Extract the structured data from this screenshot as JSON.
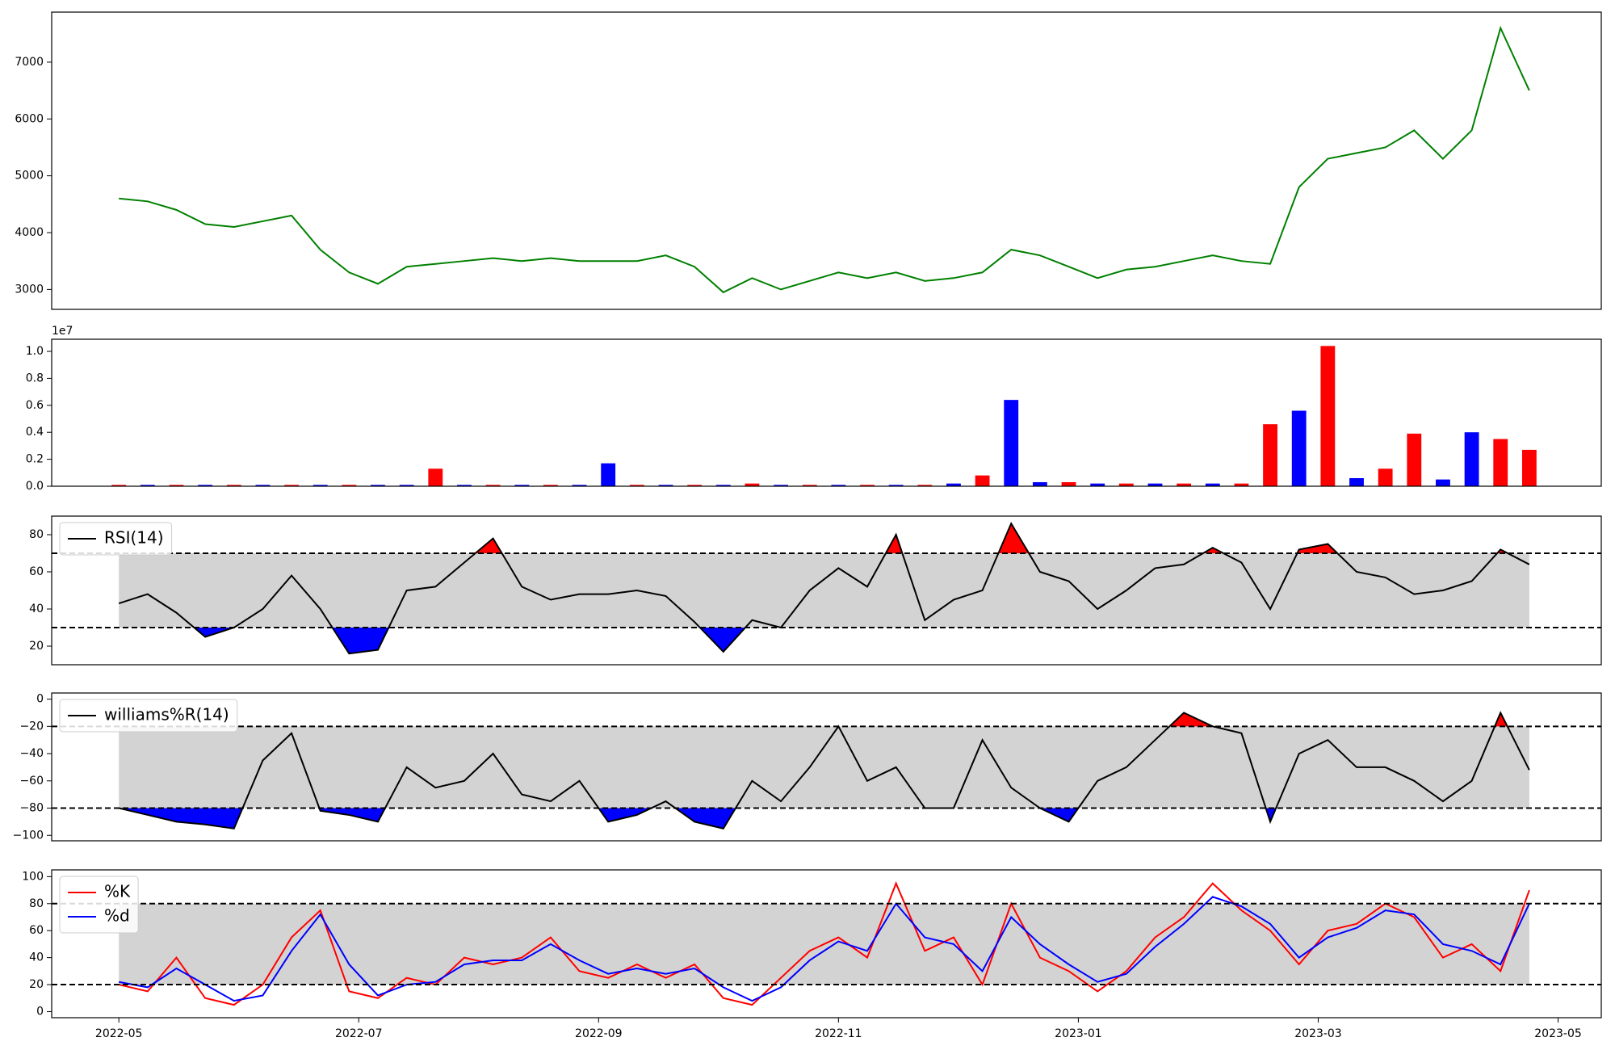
{
  "chart_data": [
    {
      "type": "line",
      "x": [
        0,
        0.24,
        0.48,
        0.72,
        0.96,
        1.2,
        1.44,
        1.68,
        1.92,
        2.16,
        2.4,
        2.64,
        2.88,
        3.12,
        3.36,
        3.6,
        3.84,
        4.08,
        4.32,
        4.56,
        4.8,
        5.04,
        5.28,
        5.52,
        5.76,
        6.0,
        6.24,
        6.48,
        6.72,
        6.96,
        7.2,
        7.44,
        7.68,
        7.92,
        8.16,
        8.4,
        8.64,
        8.88,
        9.12,
        9.36,
        9.6,
        9.84,
        10.08,
        10.32,
        10.56,
        10.8,
        11.04,
        11.28,
        11.52,
        11.76
      ],
      "series": [
        {
          "color": "#008000",
          "values": [
            4600,
            4550,
            4400,
            4150,
            4100,
            4200,
            4300,
            3700,
            3300,
            3100,
            3400,
            3450,
            3500,
            3550,
            3500,
            3550,
            3500,
            3500,
            3500,
            3600,
            3400,
            2950,
            3200,
            3000,
            3150,
            3300,
            3200,
            3300,
            3150,
            3200,
            3300,
            3700,
            3600,
            3400,
            3200,
            3350,
            3400,
            3500,
            3600,
            3500,
            3450,
            4800,
            5300,
            5400,
            5500,
            5800,
            5300,
            5800,
            7600,
            6500
          ]
        }
      ],
      "xlim": [
        -0.56,
        12.36
      ],
      "ylim": [
        2650,
        7880
      ],
      "yticks": [
        3000,
        4000,
        5000,
        6000,
        7000
      ]
    },
    {
      "type": "bar",
      "offset_label": "1e7",
      "x": [
        0,
        0.24,
        0.48,
        0.72,
        0.96,
        1.2,
        1.44,
        1.68,
        1.92,
        2.16,
        2.4,
        2.64,
        2.88,
        3.12,
        3.36,
        3.6,
        3.84,
        4.08,
        4.32,
        4.56,
        4.8,
        5.04,
        5.28,
        5.52,
        5.76,
        6.0,
        6.24,
        6.48,
        6.72,
        6.96,
        7.2,
        7.44,
        7.68,
        7.92,
        8.16,
        8.4,
        8.64,
        8.88,
        9.12,
        9.36,
        9.6,
        9.84,
        10.08,
        10.32,
        10.56,
        10.8,
        11.04,
        11.28,
        11.52,
        11.76
      ],
      "values": [
        0.01,
        0.01,
        0.01,
        0.01,
        0.01,
        0.01,
        0.01,
        0.01,
        0.01,
        0.01,
        0.01,
        0.13,
        0.01,
        0.01,
        0.01,
        0.01,
        0.01,
        0.17,
        0.01,
        0.01,
        0.01,
        0.01,
        0.02,
        0.01,
        0.01,
        0.01,
        0.01,
        0.01,
        0.01,
        0.02,
        0.08,
        0.64,
        0.03,
        0.03,
        0.02,
        0.02,
        0.02,
        0.02,
        0.02,
        0.02,
        0.46,
        0.56,
        1.04,
        0.06,
        0.13,
        0.39,
        0.05,
        0.4,
        0.35,
        0.27
      ],
      "colors": [
        "#ff0000",
        "#0000ff",
        "#ff0000",
        "#0000ff",
        "#ff0000",
        "#0000ff",
        "#ff0000",
        "#0000ff",
        "#ff0000",
        "#0000ff",
        "#0000ff",
        "#ff0000",
        "#0000ff",
        "#ff0000",
        "#0000ff",
        "#ff0000",
        "#0000ff",
        "#0000ff",
        "#ff0000",
        "#0000ff",
        "#ff0000",
        "#0000ff",
        "#ff0000",
        "#0000ff",
        "#ff0000",
        "#0000ff",
        "#ff0000",
        "#0000ff",
        "#ff0000",
        "#0000ff",
        "#ff0000",
        "#0000ff",
        "#0000ff",
        "#ff0000",
        "#0000ff",
        "#ff0000",
        "#0000ff",
        "#ff0000",
        "#0000ff",
        "#ff0000",
        "#ff0000",
        "#0000ff",
        "#ff0000",
        "#0000ff",
        "#ff0000",
        "#ff0000",
        "#0000ff",
        "#0000ff",
        "#ff0000",
        "#ff0000"
      ],
      "xlim": [
        -0.56,
        12.36
      ],
      "ylim": [
        0,
        1.09
      ],
      "yticks": [
        {
          "value": 0,
          "label": "0.0"
        },
        {
          "value": 0.2,
          "label": "0.2"
        },
        {
          "value": 0.4,
          "label": "0.4"
        },
        {
          "value": 0.6,
          "label": "0.6"
        },
        {
          "value": 0.8,
          "label": "0.8"
        },
        {
          "value": 1.0,
          "label": "1.0"
        }
      ]
    },
    {
      "type": "line",
      "legend": "upper left",
      "x": [
        0,
        0.24,
        0.48,
        0.72,
        0.96,
        1.2,
        1.44,
        1.68,
        1.92,
        2.16,
        2.4,
        2.64,
        2.88,
        3.12,
        3.36,
        3.6,
        3.84,
        4.08,
        4.32,
        4.56,
        4.8,
        5.04,
        5.28,
        5.52,
        5.76,
        6.0,
        6.24,
        6.48,
        6.72,
        6.96,
        7.2,
        7.44,
        7.68,
        7.92,
        8.16,
        8.4,
        8.64,
        8.88,
        9.12,
        9.36,
        9.6,
        9.84,
        10.08,
        10.32,
        10.56,
        10.8,
        11.04,
        11.28,
        11.52,
        11.76
      ],
      "series": [
        {
          "name": "RSI(14)",
          "color": "#000000",
          "values": [
            43,
            48,
            38,
            25,
            30,
            40,
            58,
            40,
            16,
            18,
            50,
            52,
            65,
            78,
            52,
            45,
            48,
            48,
            50,
            47,
            33,
            17,
            34,
            30,
            50,
            62,
            52,
            80,
            34,
            45,
            50,
            86,
            60,
            55,
            40,
            50,
            62,
            64,
            73,
            65,
            40,
            72,
            75,
            60,
            57,
            48,
            50,
            55,
            72,
            64
          ]
        }
      ],
      "band": [
        30,
        70
      ],
      "band_color": "#d3d3d3",
      "above_color": "#ff0000",
      "below_color": "#0000ff",
      "xlim": [
        -0.56,
        12.36
      ],
      "ylim": [
        10,
        90
      ],
      "yticks": [
        20,
        40,
        60,
        80
      ]
    },
    {
      "type": "line",
      "legend": "upper left",
      "x": [
        0,
        0.24,
        0.48,
        0.72,
        0.96,
        1.2,
        1.44,
        1.68,
        1.92,
        2.16,
        2.4,
        2.64,
        2.88,
        3.12,
        3.36,
        3.6,
        3.84,
        4.08,
        4.32,
        4.56,
        4.8,
        5.04,
        5.28,
        5.52,
        5.76,
        6.0,
        6.24,
        6.48,
        6.72,
        6.96,
        7.2,
        7.44,
        7.68,
        7.92,
        8.16,
        8.4,
        8.64,
        8.88,
        9.12,
        9.36,
        9.6,
        9.84,
        10.08,
        10.32,
        10.56,
        10.8,
        11.04,
        11.28,
        11.52,
        11.76
      ],
      "series": [
        {
          "name": "williams%R(14)",
          "color": "#000000",
          "values": [
            -80,
            -85,
            -90,
            -92,
            -95,
            -45,
            -25,
            -82,
            -85,
            -90,
            -50,
            -65,
            -60,
            -40,
            -70,
            -75,
            -60,
            -90,
            -85,
            -75,
            -90,
            -95,
            -60,
            -75,
            -50,
            -20,
            -60,
            -50,
            -80,
            -80,
            -30,
            -65,
            -80,
            -90,
            -60,
            -50,
            -30,
            -10,
            -20,
            -25,
            -90,
            -40,
            -30,
            -50,
            -50,
            -60,
            -75,
            -60,
            -10,
            -52
          ]
        }
      ],
      "band": [
        -80,
        -20
      ],
      "band_color": "#d3d3d3",
      "above_color": "#ff0000",
      "below_color": "#0000ff",
      "xlim": [
        -0.56,
        12.36
      ],
      "ylim": [
        -104,
        4.5
      ],
      "yticks": [
        {
          "value": -100,
          "label": "−100"
        },
        {
          "value": -80,
          "label": "−80"
        },
        {
          "value": -60,
          "label": "−60"
        },
        {
          "value": -40,
          "label": "−40"
        },
        {
          "value": -20,
          "label": "−20"
        },
        0
      ]
    },
    {
      "type": "line",
      "legend": "upper left",
      "x": [
        0,
        0.24,
        0.48,
        0.72,
        0.96,
        1.2,
        1.44,
        1.68,
        1.92,
        2.16,
        2.4,
        2.64,
        2.88,
        3.12,
        3.36,
        3.6,
        3.84,
        4.08,
        4.32,
        4.56,
        4.8,
        5.04,
        5.28,
        5.52,
        5.76,
        6.0,
        6.24,
        6.48,
        6.72,
        6.96,
        7.2,
        7.44,
        7.68,
        7.92,
        8.16,
        8.4,
        8.64,
        8.88,
        9.12,
        9.36,
        9.6,
        9.84,
        10.08,
        10.32,
        10.56,
        10.8,
        11.04,
        11.28,
        11.52,
        11.76
      ],
      "series": [
        {
          "name": "%K",
          "color": "#ff0000",
          "values": [
            20,
            15,
            40,
            10,
            5,
            20,
            55,
            75,
            15,
            10,
            25,
            20,
            40,
            35,
            40,
            55,
            30,
            25,
            35,
            25,
            35,
            10,
            5,
            25,
            45,
            55,
            40,
            95,
            45,
            55,
            20,
            80,
            40,
            30,
            15,
            30,
            55,
            70,
            95,
            75,
            60,
            35,
            60,
            65,
            80,
            70,
            40,
            50,
            30,
            90
          ]
        },
        {
          "name": "%d",
          "color": "#0000ff",
          "values": [
            22,
            18,
            32,
            20,
            8,
            12,
            45,
            72,
            35,
            12,
            20,
            22,
            35,
            38,
            38,
            50,
            38,
            28,
            32,
            28,
            32,
            18,
            8,
            18,
            38,
            52,
            45,
            80,
            55,
            50,
            30,
            70,
            50,
            35,
            22,
            28,
            48,
            65,
            85,
            78,
            65,
            40,
            55,
            62,
            75,
            72,
            50,
            45,
            35,
            80
          ]
        }
      ],
      "band": [
        20,
        80
      ],
      "band_color": "#d3d3d3",
      "xlim": [
        -0.56,
        12.36
      ],
      "ylim": [
        -4.5,
        105
      ],
      "yticks": [
        0,
        20,
        40,
        60,
        80,
        100
      ],
      "xticks": [
        {
          "value": 0,
          "label": "2022-05"
        },
        {
          "value": 2,
          "label": "2022-07"
        },
        {
          "value": 4,
          "label": "2022-09"
        },
        {
          "value": 6,
          "label": "2022-11"
        },
        {
          "value": 8,
          "label": "2023-01"
        },
        {
          "value": 10,
          "label": "2023-03"
        },
        {
          "value": 12,
          "label": "2023-05"
        }
      ]
    }
  ]
}
